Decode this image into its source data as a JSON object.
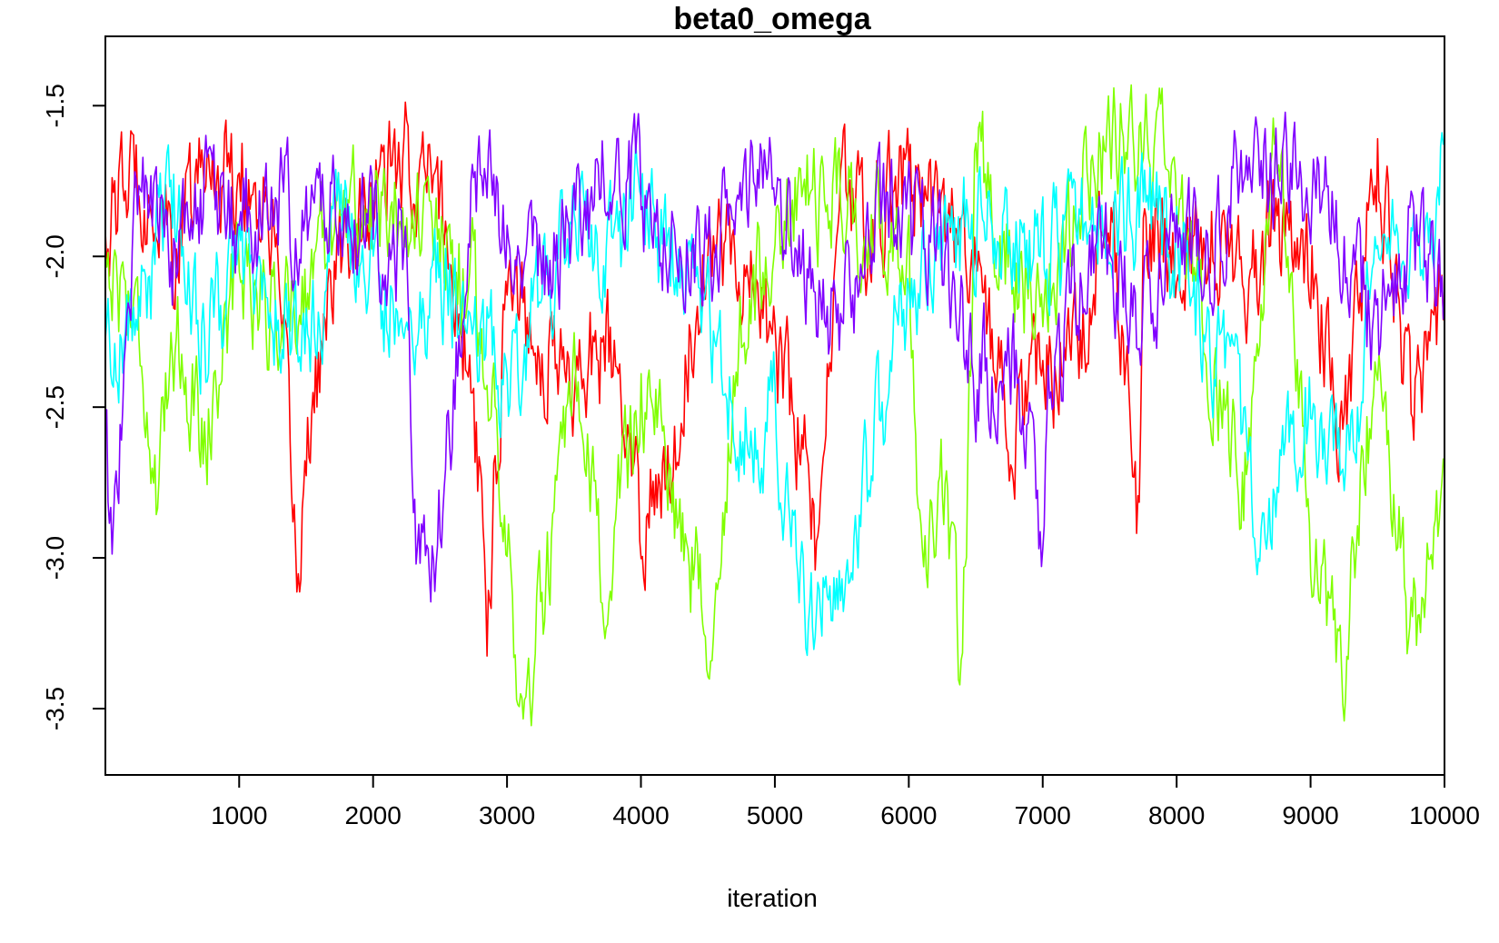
{
  "chart_data": {
    "type": "line",
    "title": "beta0_omega",
    "xlabel": "iteration",
    "ylabel": "",
    "xlim": [
      1,
      10000
    ],
    "ylim": [
      -3.72,
      -1.27
    ],
    "x_ticks": [
      1000,
      2000,
      3000,
      4000,
      5000,
      6000,
      7000,
      8000,
      9000,
      10000
    ],
    "x_tick_labels": [
      "1000",
      "2000",
      "3000",
      "4000",
      "5000",
      "6000",
      "7000",
      "8000",
      "9000",
      "10000"
    ],
    "y_ticks": [
      -1.5,
      -2.0,
      -2.5,
      -3.0,
      -3.5
    ],
    "y_tick_labels": [
      "-1.5",
      "-2.0",
      "-2.5",
      "-3.0",
      "-3.5"
    ],
    "grid": false,
    "legend": "none",
    "series": [
      {
        "color": "#ff0000",
        "x": [
          0,
          250,
          500,
          750,
          1000,
          1250,
          1450,
          1500,
          1750,
          2000,
          2250,
          2500,
          2750,
          2850,
          3000,
          3250,
          3500,
          3750,
          4000,
          4250,
          4500,
          4750,
          5000,
          5250,
          5300,
          5500,
          5750,
          6000,
          6250,
          6500,
          6750,
          7000,
          7250,
          7500,
          7720,
          7750,
          8000,
          8250,
          8500,
          8750,
          9000,
          9250,
          9500,
          9750,
          10000
        ],
        "values": [
          -1.9,
          -1.7,
          -2.0,
          -1.7,
          -1.7,
          -1.9,
          -3.1,
          -2.6,
          -2.0,
          -1.8,
          -1.7,
          -1.8,
          -2.5,
          -3.2,
          -2.0,
          -2.3,
          -2.4,
          -2.3,
          -2.9,
          -2.6,
          -1.9,
          -2.0,
          -2.3,
          -2.7,
          -3.0,
          -1.8,
          -1.9,
          -1.7,
          -1.9,
          -2.0,
          -2.6,
          -2.4,
          -2.3,
          -1.8,
          -2.9,
          -1.9,
          -2.0,
          -1.9,
          -2.1,
          -1.9,
          -2.0,
          -2.6,
          -1.7,
          -2.5,
          -2.1
        ]
      },
      {
        "color": "#80ff00",
        "x": [
          0,
          250,
          400,
          500,
          750,
          1000,
          1250,
          1500,
          1750,
          2000,
          2250,
          2500,
          2750,
          3000,
          3100,
          3250,
          3500,
          3750,
          4000,
          4250,
          4500,
          4750,
          5000,
          5250,
          5500,
          5750,
          6000,
          6100,
          6250,
          6400,
          6500,
          6750,
          7000,
          7250,
          7500,
          7750,
          8000,
          8250,
          8500,
          8750,
          9000,
          9250,
          9500,
          9750,
          10000
        ],
        "values": [
          -2.0,
          -2.2,
          -2.9,
          -2.2,
          -2.6,
          -2.0,
          -2.2,
          -2.1,
          -1.8,
          -1.9,
          -1.8,
          -2.0,
          -2.1,
          -2.8,
          -3.6,
          -3.2,
          -2.5,
          -3.1,
          -2.4,
          -2.8,
          -3.2,
          -2.3,
          -1.9,
          -1.8,
          -1.8,
          -1.9,
          -2.0,
          -3.2,
          -2.8,
          -3.4,
          -1.6,
          -2.0,
          -2.2,
          -1.8,
          -1.6,
          -1.6,
          -1.8,
          -2.3,
          -2.8,
          -1.6,
          -3.0,
          -3.3,
          -2.3,
          -3.3,
          -2.8
        ]
      },
      {
        "color": "#00ffff",
        "x": [
          0,
          250,
          500,
          750,
          1000,
          1250,
          1500,
          1750,
          2000,
          2250,
          2500,
          2750,
          3000,
          3250,
          3500,
          3750,
          4000,
          4250,
          4500,
          4750,
          5000,
          5100,
          5250,
          5400,
          5500,
          5750,
          6000,
          6250,
          6500,
          6750,
          7000,
          7250,
          7500,
          7750,
          8000,
          8250,
          8500,
          8700,
          8750,
          9000,
          9250,
          9500,
          9750,
          10000
        ],
        "values": [
          -2.3,
          -2.2,
          -1.8,
          -2.3,
          -2.0,
          -2.2,
          -2.3,
          -1.9,
          -2.1,
          -2.2,
          -2.1,
          -2.2,
          -2.4,
          -2.1,
          -1.9,
          -2.0,
          -1.8,
          -2.0,
          -2.2,
          -2.6,
          -2.5,
          -2.9,
          -3.3,
          -2.9,
          -3.2,
          -2.6,
          -2.1,
          -2.0,
          -1.9,
          -1.9,
          -2.0,
          -1.9,
          -1.9,
          -1.8,
          -2.0,
          -2.3,
          -2.6,
          -3.0,
          -2.8,
          -2.5,
          -2.8,
          -2.0,
          -2.0,
          -1.7
        ]
      },
      {
        "color": "#8000ff",
        "x": [
          0,
          50,
          250,
          500,
          750,
          1000,
          1250,
          1500,
          1750,
          2000,
          2250,
          2300,
          2500,
          2750,
          3000,
          3250,
          3500,
          3750,
          4000,
          4250,
          4500,
          4750,
          5000,
          5250,
          5500,
          5750,
          6000,
          6250,
          6500,
          6750,
          7000,
          7050,
          7250,
          7500,
          7750,
          8000,
          8250,
          8500,
          8750,
          9000,
          9250,
          9500,
          9750,
          10000
        ],
        "values": [
          -2.6,
          -3.0,
          -1.7,
          -2.0,
          -1.8,
          -1.9,
          -1.8,
          -1.9,
          -1.8,
          -1.9,
          -2.0,
          -3.1,
          -2.9,
          -1.8,
          -1.8,
          -2.1,
          -1.9,
          -1.7,
          -1.8,
          -1.9,
          -2.0,
          -1.8,
          -1.8,
          -2.1,
          -2.2,
          -1.9,
          -1.9,
          -2.0,
          -2.4,
          -2.3,
          -2.9,
          -2.5,
          -2.1,
          -2.0,
          -2.2,
          -1.9,
          -2.0,
          -1.7,
          -1.7,
          -1.8,
          -1.9,
          -2.3,
          -1.9,
          -2.2
        ]
      }
    ]
  }
}
